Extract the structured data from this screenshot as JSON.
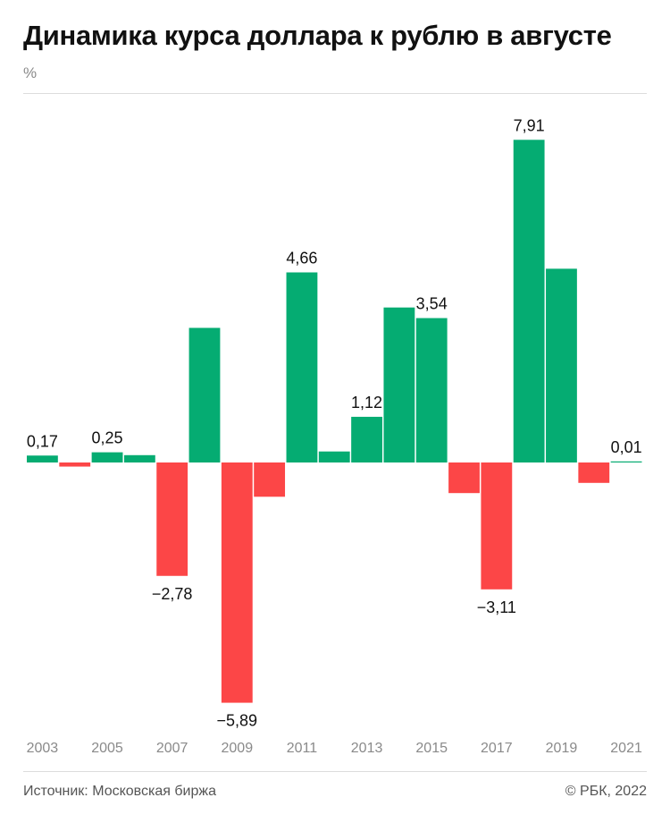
{
  "header": {
    "title": "Динамика курса доллара к рублю в августе",
    "unit": "%"
  },
  "footer": {
    "source": "Источник: Московская биржа",
    "copyright": "© РБК, 2022"
  },
  "colors": {
    "positive": "#05ac72",
    "negative": "#fc4647",
    "tick_text": "#8a8a8a",
    "label_text": "#111111"
  },
  "chart_data": {
    "type": "bar",
    "title": "Динамика курса доллара к рублю в августе",
    "ylabel": "%",
    "xlabel": "",
    "ylim": [
      -6.5,
      9.0
    ],
    "grid": false,
    "categories": [
      "2003",
      "2004",
      "2005",
      "2006",
      "2007",
      "2008",
      "2009",
      "2010",
      "2011",
      "2012",
      "2013",
      "2014",
      "2015",
      "2016",
      "2017",
      "2018",
      "2019",
      "2020",
      "2021"
    ],
    "values": [
      0.17,
      -0.1,
      0.25,
      0.18,
      -2.78,
      3.3,
      -5.89,
      -0.84,
      4.66,
      0.27,
      1.12,
      3.8,
      3.54,
      -0.75,
      -3.11,
      7.91,
      4.75,
      -0.5,
      0.01
    ],
    "tick_labels": [
      "2003",
      "",
      "2005",
      "",
      "2007",
      "",
      "2009",
      "",
      "2011",
      "",
      "2013",
      "",
      "2015",
      "",
      "2017",
      "",
      "2019",
      "",
      "2021"
    ],
    "data_labels": [
      "0,17",
      "",
      "0,25",
      "",
      "−2,78",
      "",
      "−5,89",
      "",
      "4,66",
      "",
      "1,12",
      "",
      "3,54",
      "",
      "−3,11",
      "7,91",
      "",
      "",
      "0,01"
    ]
  }
}
